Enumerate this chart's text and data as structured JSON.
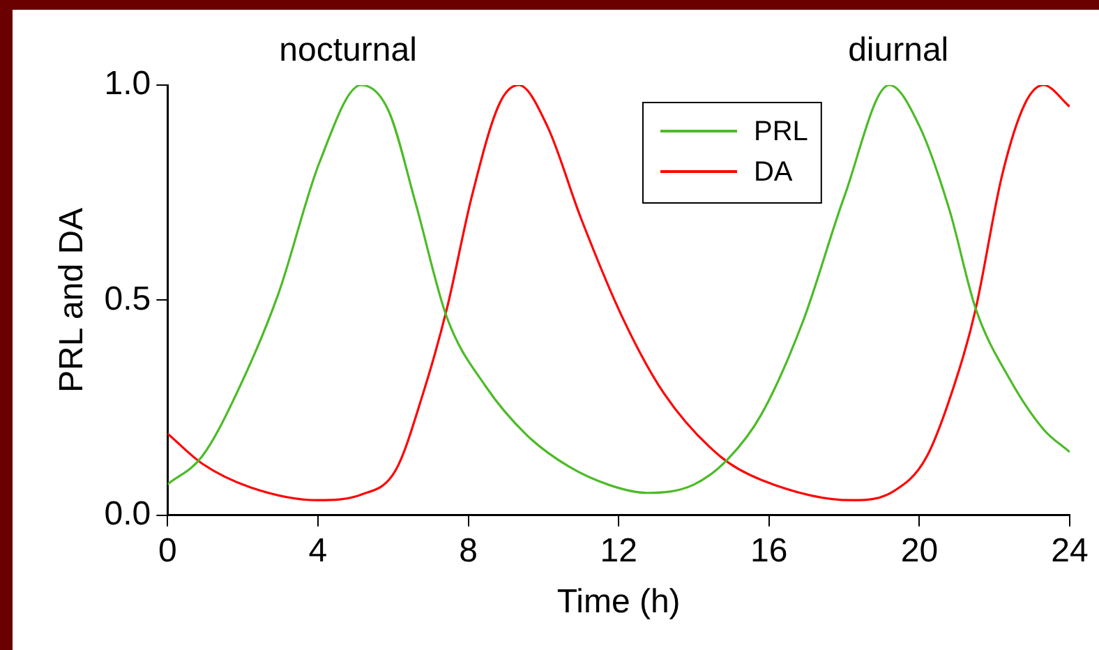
{
  "chart_data": {
    "type": "line",
    "xlabel": "Time (h)",
    "ylabel": "PRL and DA",
    "xlim": [
      0,
      24
    ],
    "xticks": [
      0,
      4,
      8,
      12,
      16,
      20,
      24
    ],
    "ylim": [
      0,
      1
    ],
    "yticks": [
      {
        "value": 0,
        "label": "0.0"
      },
      {
        "value": 0.5,
        "label": "0.5"
      },
      {
        "value": 1,
        "label": "1.0"
      }
    ],
    "legend": "top",
    "marker": "none",
    "line_style": "solid",
    "annotations": [
      "nocturnal",
      "diurnal"
    ],
    "series": [
      {
        "name": "PRL",
        "color": "#4cbb27",
        "x": [
          0,
          0.92,
          1.84,
          2.94,
          4.04,
          5.15,
          5.88,
          6.6,
          7.43,
          8.46,
          9.56,
          10.66,
          11.76,
          12.76,
          13.97,
          14.9,
          15.8,
          16.9,
          18.0,
          19.2,
          20.0,
          20.8,
          21.5,
          22.4,
          23.3,
          24
        ],
        "values": [
          0.072,
          0.137,
          0.284,
          0.513,
          0.82,
          1.0,
          0.94,
          0.725,
          0.46,
          0.3,
          0.186,
          0.114,
          0.07,
          0.052,
          0.07,
          0.13,
          0.235,
          0.45,
          0.74,
          1.0,
          0.905,
          0.71,
          0.48,
          0.317,
          0.2,
          0.147
        ]
      },
      {
        "name": "DA",
        "color": "#ff0000",
        "x": [
          0,
          0.92,
          2.2,
          4.0,
          5.15,
          6.07,
          6.8,
          7.43,
          8.09,
          8.82,
          9.34,
          10.1,
          11.0,
          12.1,
          13.2,
          14.7,
          15.8,
          18.2,
          19.3,
          20.2,
          21.1,
          21.5,
          22.2,
          22.8,
          23.3,
          24
        ],
        "values": [
          0.19,
          0.12,
          0.065,
          0.035,
          0.048,
          0.105,
          0.284,
          0.48,
          0.74,
          0.955,
          1.0,
          0.905,
          0.69,
          0.46,
          0.284,
          0.137,
          0.082,
          0.035,
          0.055,
          0.137,
          0.35,
          0.48,
          0.79,
          0.955,
          1.0,
          0.95
        ]
      }
    ]
  }
}
